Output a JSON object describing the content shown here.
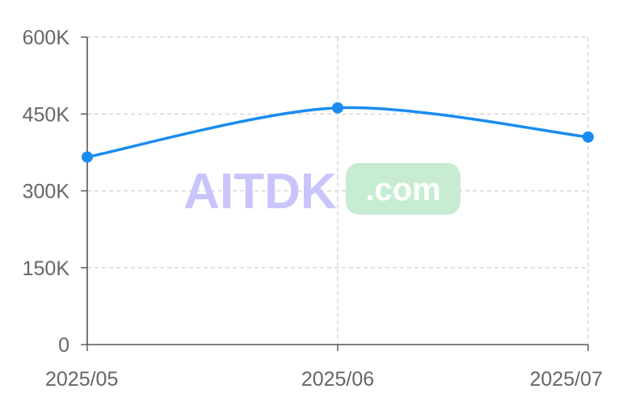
{
  "chart_data": {
    "type": "line",
    "x": [
      "2025/05",
      "2025/06",
      "2025/07"
    ],
    "series": [
      {
        "values": [
          366000,
          462000,
          405000
        ]
      }
    ],
    "ylim": [
      0,
      600000
    ],
    "yticks": [
      0,
      150000,
      300000,
      450000,
      600000
    ],
    "ytick_labels": [
      "0",
      "150K",
      "300K",
      "450K",
      "600K"
    ],
    "grid": true,
    "smooth": true,
    "colors": {
      "line": "#1a8cf0",
      "grid": "#cfcfcf",
      "axis": "#555555",
      "tick_text": "#666666"
    }
  },
  "watermark": {
    "text": "AITDK",
    "badge": ".com",
    "text_color": "#c9c5fb",
    "badge_bg": "#c8ecd2"
  }
}
